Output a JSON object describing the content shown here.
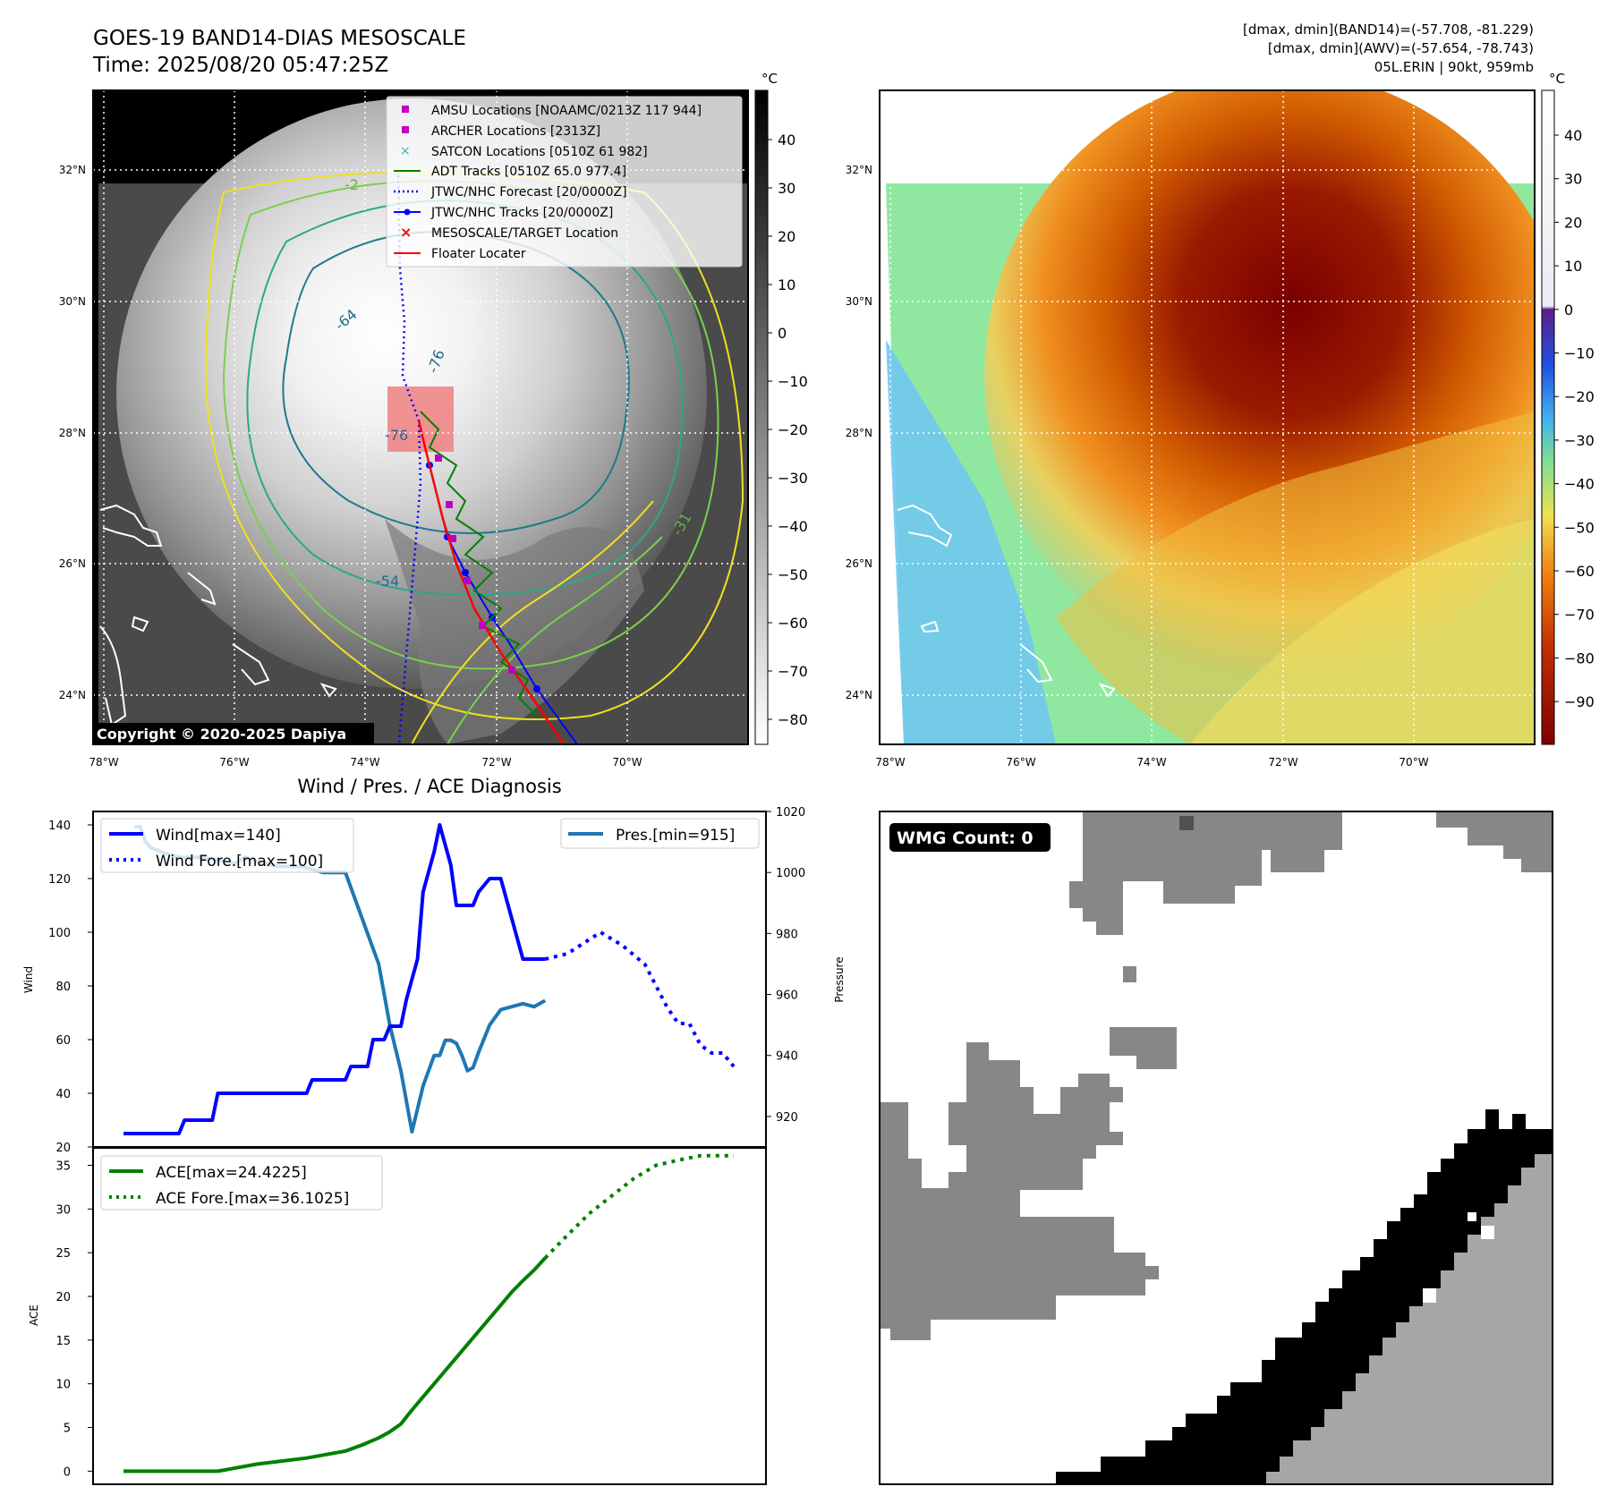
{
  "header": {
    "title_line1": "GOES-19 BAND14-DIAS MESOSCALE",
    "title_line2": "Time: 2025/08/20 05:47:25Z",
    "info_line1": "[dmax, dmin](BAND14)=(-57.708, -81.229)",
    "info_line2": "[dmax, dmin](AWV)=(-57.654, -78.743)",
    "info_line3": "05L.ERIN | 90kt, 959mb"
  },
  "copyright": "Copyright © 2020-2025 Dapiya",
  "map_axes": {
    "lat_labels": [
      "32°N",
      "30°N",
      "28°N",
      "26°N",
      "24°N"
    ],
    "lon_labels": [
      "78°W",
      "76°W",
      "74°W",
      "72°W",
      "70°W"
    ],
    "colorbar_unit": "°C"
  },
  "colorbar_left_ticks": [
    "40",
    "30",
    "20",
    "10",
    "0",
    "−10",
    "−20",
    "−30",
    "−40",
    "−50",
    "−60",
    "−70",
    "−80"
  ],
  "colorbar_right_ticks": [
    "40",
    "30",
    "20",
    "10",
    "0",
    "−10",
    "−20",
    "−30",
    "−40",
    "−50",
    "−60",
    "−70",
    "−80",
    "−90"
  ],
  "contour_labels": [
    "-64",
    "-76",
    "-76",
    "-54",
    "-31",
    "-2"
  ],
  "map_legend": [
    {
      "label": "AMSU Locations [NOAAMC/0213Z 117 944]",
      "marker": "square",
      "color": "#c000c0"
    },
    {
      "label": "ARCHER Locations [2313Z]",
      "marker": "square",
      "color": "#c000c0"
    },
    {
      "label": "SATCON Locations [0510Z 61 982]",
      "marker": "x",
      "color": "#20c0c0"
    },
    {
      "label": "ADT Tracks [0510Z 65.0 977.4]",
      "marker": "line",
      "color": "#008000"
    },
    {
      "label": "JTWC/NHC Forecast [20/0000Z]",
      "marker": "dotted",
      "color": "#0000ff"
    },
    {
      "label": "JTWC/NHC Tracks [20/0000Z]",
      "marker": "line-dot",
      "color": "#0000ff"
    },
    {
      "label": "MESOSCALE/TARGET Location",
      "marker": "x",
      "color": "#ff0000"
    },
    {
      "label": "Floater Locater",
      "marker": "line",
      "color": "#ff0000"
    }
  ],
  "wmg": {
    "label": "WMG Count: 0"
  },
  "colors": {
    "wind": "#0000ff",
    "pressure": "#1f77b4",
    "ace": "#008000",
    "floater": "#ff0000"
  },
  "chart_data": [
    {
      "type": "line",
      "title": "Wind / Pres. / ACE Diagnosis",
      "ylabel": "Wind",
      "ylabel_right": "Pressure",
      "ylim": [
        20,
        145
      ],
      "ylim_right": [
        910,
        1020
      ],
      "yticks": [
        20,
        40,
        60,
        80,
        100,
        120,
        140
      ],
      "yticks_right": [
        920,
        940,
        960,
        980,
        1000,
        1020
      ],
      "x_range": [
        0,
        76
      ],
      "series": [
        {
          "name": "Wind[max=140]",
          "style": "solid",
          "color": "#0000ff",
          "x": [
            0,
            10,
            11,
            16,
            17,
            22,
            23,
            33,
            34,
            40,
            41,
            44,
            45,
            47,
            48,
            50,
            51,
            53,
            54,
            56,
            57,
            59,
            60,
            61,
            62,
            63,
            64,
            66,
            68,
            70,
            72,
            74,
            76
          ],
          "values": [
            25,
            25,
            30,
            30,
            40,
            40,
            40,
            40,
            45,
            45,
            50,
            50,
            60,
            60,
            65,
            65,
            75,
            90,
            115,
            130,
            140,
            125,
            110,
            110,
            110,
            110,
            115,
            120,
            120,
            105,
            90,
            90,
            90
          ]
        },
        {
          "name": "Wind Fore.[max=100]",
          "style": "dotted",
          "color": "#0000ff",
          "x": [
            76,
            80,
            86,
            90,
            94,
            96,
            98,
            100,
            102,
            104,
            106,
            108,
            110
          ],
          "values": [
            90,
            92,
            100,
            95,
            88,
            80,
            72,
            66,
            66,
            58,
            55,
            55,
            50
          ]
        },
        {
          "name": "Pres.[min=915]",
          "style": "solid",
          "color": "#1f77b4",
          "axis": "right",
          "x": [
            2,
            3,
            4,
            5,
            8,
            10,
            14,
            17,
            20,
            22,
            25,
            28,
            29,
            32,
            36,
            38,
            40,
            42,
            46,
            48,
            50,
            52,
            54,
            55,
            56,
            57,
            58,
            59,
            60,
            61,
            62,
            63,
            64,
            66,
            68,
            70,
            72,
            74,
            76
          ],
          "values": [
            1015,
            1015,
            1010,
            1008,
            1006,
            1005,
            1005,
            1004,
            1003,
            1005,
            1003,
            1002,
            1002,
            1002,
            1000,
            1000,
            1000,
            990,
            970,
            950,
            935,
            915,
            930,
            935,
            940,
            940,
            945,
            945,
            944,
            940,
            935,
            936,
            941,
            950,
            955,
            956,
            957,
            956,
            958
          ]
        }
      ]
    },
    {
      "type": "line",
      "ylabel": "ACE",
      "ylim": [
        -1.5,
        37
      ],
      "yticks": [
        0,
        5,
        10,
        15,
        20,
        25,
        30,
        35
      ],
      "x_range": [
        0,
        110
      ],
      "series": [
        {
          "name": "ACE[max=24.4225]",
          "style": "solid",
          "color": "#008000",
          "x": [
            0,
            17,
            24,
            33,
            40,
            43,
            46,
            48,
            50,
            52,
            54,
            56,
            58,
            60,
            62,
            64,
            66,
            68,
            70,
            72,
            74,
            76
          ],
          "values": [
            0,
            0,
            0.8,
            1.5,
            2.3,
            3,
            3.8,
            4.5,
            5.4,
            7,
            8.5,
            10,
            11.5,
            13,
            14.5,
            16,
            17.5,
            19,
            20.5,
            21.8,
            23,
            24.4
          ]
        },
        {
          "name": "ACE Fore.[max=36.1025]",
          "style": "dotted",
          "color": "#008000",
          "x": [
            76,
            80,
            84,
            88,
            92,
            96,
            100,
            104,
            108,
            110
          ],
          "values": [
            24.4,
            27,
            29.5,
            31.5,
            33.5,
            35,
            35.6,
            36.1,
            36.1,
            36.1
          ]
        }
      ]
    }
  ]
}
